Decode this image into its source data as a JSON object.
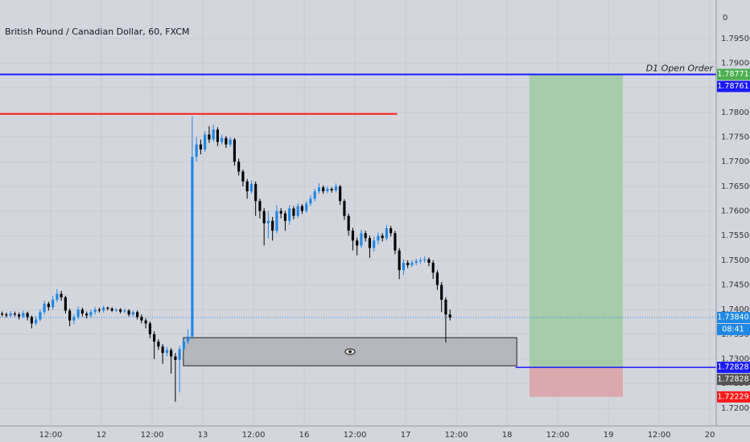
{
  "chart_data": {
    "type": "candlestick",
    "title": "British Pound / Canadian Dollar, 60, FXCM",
    "axis_top_label": "0",
    "up_color": "#1e88e5",
    "down_color": "#000000",
    "open": [
      1.7392,
      1.739,
      1.7388,
      1.7392,
      1.739,
      1.7386,
      1.7393,
      1.7385,
      1.7372,
      1.738,
      1.7395,
      1.7412,
      1.7405,
      1.742,
      1.7432,
      1.7425,
      1.7398,
      1.7378,
      1.7385,
      1.74,
      1.7392,
      1.7388,
      1.7395,
      1.74,
      1.7398,
      1.7404,
      1.7402,
      1.7398,
      1.74,
      1.7396,
      1.7398,
      1.739,
      1.7395,
      1.7385,
      1.7378,
      1.7372,
      1.735,
      1.7335,
      1.7325,
      1.7312,
      1.7318,
      1.7305,
      1.7298,
      1.732,
      1.7335,
      1.7345,
      1.771,
      1.7735,
      1.7725,
      1.7755,
      1.7745,
      1.7765,
      1.774,
      1.7748,
      1.7735,
      1.7745,
      1.77,
      1.768,
      1.766,
      1.764,
      1.7655,
      1.762,
      1.76,
      1.7575,
      1.758,
      1.756,
      1.76,
      1.7595,
      1.758,
      1.7605,
      1.759,
      1.761,
      1.76,
      1.7615,
      1.7625,
      1.764,
      1.7648,
      1.764,
      1.7645,
      1.7642,
      1.765,
      1.762,
      1.759,
      1.756,
      1.754,
      1.753,
      1.7555,
      1.7545,
      1.7525,
      1.754,
      1.755,
      1.7545,
      1.7565,
      1.7555,
      1.752,
      1.748,
      1.7495,
      1.749,
      1.7495,
      1.7498,
      1.75,
      1.7502,
      1.7495,
      1.7475,
      1.745,
      1.742,
      1.739
    ],
    "high": [
      1.7396,
      1.7394,
      1.7397,
      1.7396,
      1.7394,
      1.7398,
      1.7396,
      1.7388,
      1.7386,
      1.74,
      1.7418,
      1.7416,
      1.7428,
      1.7442,
      1.7438,
      1.7428,
      1.7402,
      1.739,
      1.7406,
      1.7404,
      1.7396,
      1.74,
      1.7405,
      1.7404,
      1.7408,
      1.7406,
      1.7405,
      1.7403,
      1.7403,
      1.7402,
      1.7401,
      1.7398,
      1.7398,
      1.739,
      1.7382,
      1.7376,
      1.7356,
      1.734,
      1.733,
      1.7324,
      1.7322,
      1.7312,
      1.7326,
      1.7342,
      1.736,
      1.7792,
      1.775,
      1.7745,
      1.7762,
      1.7772,
      1.7775,
      1.777,
      1.7755,
      1.7752,
      1.775,
      1.7748,
      1.7706,
      1.7684,
      1.7665,
      1.7662,
      1.766,
      1.7625,
      1.7606,
      1.76,
      1.7588,
      1.7612,
      1.7606,
      1.76,
      1.7612,
      1.761,
      1.7616,
      1.7614,
      1.762,
      1.7632,
      1.7645,
      1.7656,
      1.7652,
      1.765,
      1.7648,
      1.7656,
      1.7653,
      1.7624,
      1.7595,
      1.7566,
      1.7546,
      1.7562,
      1.756,
      1.755,
      1.7548,
      1.7556,
      1.7555,
      1.7572,
      1.757,
      1.756,
      1.7525,
      1.7502,
      1.75,
      1.75,
      1.7503,
      1.7505,
      1.7508,
      1.7506,
      1.75,
      1.748,
      1.7456,
      1.7425,
      1.74
    ],
    "low": [
      1.7386,
      1.7384,
      1.7384,
      1.7386,
      1.738,
      1.7382,
      1.7378,
      1.7362,
      1.7368,
      1.7376,
      1.739,
      1.7398,
      1.74,
      1.7415,
      1.7418,
      1.7392,
      1.7366,
      1.737,
      1.738,
      1.7386,
      1.7382,
      1.7384,
      1.739,
      1.7394,
      1.7394,
      1.7398,
      1.7395,
      1.7395,
      1.7392,
      1.7393,
      1.7386,
      1.7386,
      1.738,
      1.7372,
      1.7362,
      1.7342,
      1.73,
      1.7318,
      1.729,
      1.7305,
      1.727,
      1.7213,
      1.7232,
      1.7315,
      1.733,
      1.734,
      1.77,
      1.7715,
      1.772,
      1.7738,
      1.774,
      1.7732,
      1.7735,
      1.7728,
      1.773,
      1.7692,
      1.7672,
      1.765,
      1.7625,
      1.7635,
      1.759,
      1.7585,
      1.753,
      1.7545,
      1.754,
      1.7555,
      1.7585,
      1.756,
      1.7572,
      1.7583,
      1.7585,
      1.7594,
      1.7596,
      1.761,
      1.762,
      1.7635,
      1.7635,
      1.7636,
      1.7637,
      1.7638,
      1.7612,
      1.7582,
      1.755,
      1.752,
      1.751,
      1.7525,
      1.7538,
      1.7505,
      1.7518,
      1.7532,
      1.7538,
      1.754,
      1.7548,
      1.7512,
      1.7462,
      1.747,
      1.7484,
      1.7486,
      1.749,
      1.7493,
      1.7495,
      1.7488,
      1.7462,
      1.744,
      1.7395,
      1.7333,
      1.7378
    ],
    "close": [
      1.739,
      1.7388,
      1.7392,
      1.739,
      1.7386,
      1.7393,
      1.7385,
      1.7372,
      1.738,
      1.7395,
      1.7412,
      1.7405,
      1.742,
      1.7432,
      1.7425,
      1.7398,
      1.7378,
      1.7385,
      1.74,
      1.7392,
      1.7388,
      1.7395,
      1.74,
      1.7398,
      1.7404,
      1.7402,
      1.7398,
      1.74,
      1.7396,
      1.7398,
      1.739,
      1.7395,
      1.7385,
      1.7378,
      1.7372,
      1.735,
      1.7335,
      1.7325,
      1.7312,
      1.7318,
      1.7305,
      1.7298,
      1.732,
      1.7335,
      1.7345,
      1.771,
      1.7735,
      1.7725,
      1.7755,
      1.7745,
      1.7765,
      1.774,
      1.7748,
      1.7735,
      1.7745,
      1.77,
      1.768,
      1.766,
      1.764,
      1.7655,
      1.762,
      1.76,
      1.7575,
      1.758,
      1.756,
      1.76,
      1.7595,
      1.758,
      1.7605,
      1.759,
      1.761,
      1.76,
      1.7615,
      1.7625,
      1.764,
      1.7648,
      1.764,
      1.7645,
      1.7642,
      1.765,
      1.762,
      1.759,
      1.756,
      1.754,
      1.753,
      1.7555,
      1.7545,
      1.7525,
      1.754,
      1.755,
      1.7545,
      1.7565,
      1.7555,
      1.752,
      1.748,
      1.7495,
      1.749,
      1.7495,
      1.7498,
      1.75,
      1.7502,
      1.7495,
      1.7475,
      1.745,
      1.742,
      1.739,
      1.7384
    ],
    "xlim": [
      0,
      169.5
    ],
    "xticks": [
      {
        "value": 12,
        "label": "12:00"
      },
      {
        "value": 24,
        "label": "12"
      },
      {
        "value": 36,
        "label": "12:00"
      },
      {
        "value": 48,
        "label": "13"
      },
      {
        "value": 60,
        "label": "12:00"
      },
      {
        "value": 72,
        "label": "16"
      },
      {
        "value": 84,
        "label": "12:00"
      },
      {
        "value": 96,
        "label": "17"
      },
      {
        "value": 108,
        "label": "12:00"
      },
      {
        "value": 120,
        "label": "18"
      },
      {
        "value": 132,
        "label": "12:00"
      },
      {
        "value": 144,
        "label": "19"
      },
      {
        "value": 156,
        "label": "12:00"
      },
      {
        "value": 168,
        "label": "20"
      }
    ],
    "ylim": [
      1.7164,
      1.8028
    ],
    "yticks": [
      {
        "value": 1.72,
        "label": "1.72000"
      },
      {
        "value": 1.725,
        "label": "1.72500"
      },
      {
        "value": 1.73,
        "label": "1.73000"
      },
      {
        "value": 1.735,
        "label": "1.73500"
      },
      {
        "value": 1.74,
        "label": "1.74000"
      },
      {
        "value": 1.745,
        "label": "1.74500"
      },
      {
        "value": 1.75,
        "label": "1.75000"
      },
      {
        "value": 1.755,
        "label": "1.75500"
      },
      {
        "value": 1.76,
        "label": "1.76000"
      },
      {
        "value": 1.765,
        "label": "1.76500"
      },
      {
        "value": 1.77,
        "label": "1.77000"
      },
      {
        "value": 1.775,
        "label": "1.77500"
      },
      {
        "value": 1.78,
        "label": "1.78000"
      },
      {
        "value": 1.785,
        "label": "1.78500"
      },
      {
        "value": 1.79,
        "label": "1.79000"
      },
      {
        "value": 1.795,
        "label": "1.79500"
      }
    ],
    "grid": true,
    "open_order_line": {
      "label": "D1 Open Order",
      "value": 1.78771,
      "color": "#1a1aff"
    },
    "resistance_line": {
      "value": 1.7797,
      "x_end": 94,
      "color": "#ff1a1a"
    },
    "last_price_line": {
      "value": 1.7384,
      "color": "#1e88e5"
    },
    "zone": {
      "x_start": 43.4,
      "x_end": 122.3,
      "top": 1.7343,
      "bottom": 1.7286,
      "color": "#b6b7bc"
    },
    "position": {
      "x_start": 125.3,
      "x_end": 147.4,
      "target": 1.78771,
      "entry": 1.72828,
      "stop": 1.72229,
      "entry_line_start": 122,
      "profit_color": "#a6cca9",
      "loss_color": "#d9a9ad",
      "entry_color": "#1a1aff"
    },
    "price_labels": [
      {
        "value": 1.78771,
        "color": "#4caf50"
      },
      {
        "value": 1.78761,
        "color": "#1a1aff"
      },
      {
        "value": 1.7384,
        "label": "1.73840",
        "color": "#1e88e5"
      },
      {
        "label": "08:41",
        "color": "#1e88e5"
      },
      {
        "value": 1.72828,
        "color": "#1a1aff"
      },
      {
        "value": 1.72828,
        "color": "#555555"
      },
      {
        "value": 1.72229,
        "color": "#ff1a1a"
      }
    ]
  }
}
